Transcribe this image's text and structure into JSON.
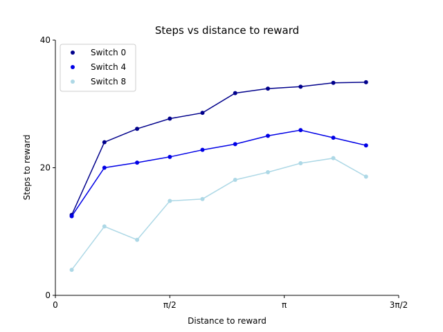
{
  "chart_data": {
    "type": "line",
    "title": "Steps vs distance to reward",
    "xlabel": "Distance to reward",
    "ylabel": "Steps to reward",
    "xlim": [
      0,
      4.712389
    ],
    "ylim": [
      0,
      40
    ],
    "xticks": [
      {
        "value": 0,
        "label": "0"
      },
      {
        "value": 1.570796,
        "label": "π/2"
      },
      {
        "value": 3.141593,
        "label": "π"
      },
      {
        "value": 4.712389,
        "label": "3π/2"
      }
    ],
    "yticks": [
      {
        "value": 0,
        "label": "0"
      },
      {
        "value": 20,
        "label": "20"
      },
      {
        "value": 40,
        "label": "40"
      }
    ],
    "x": [
      0.224,
      0.673,
      1.122,
      1.571,
      2.019,
      2.468,
      2.917,
      3.366,
      3.815,
      4.264
    ],
    "series": [
      {
        "name": "Switch 0",
        "color": "#00008b",
        "values": [
          12.6,
          24.0,
          26.1,
          27.7,
          28.6,
          31.7,
          32.4,
          32.7,
          33.3,
          33.4
        ]
      },
      {
        "name": "Switch 4",
        "color": "#0000e6",
        "values": [
          12.4,
          20.0,
          20.8,
          21.7,
          22.8,
          23.7,
          25.0,
          25.9,
          24.7,
          23.5
        ]
      },
      {
        "name": "Switch 8",
        "color": "#add8e6",
        "values": [
          4.0,
          10.8,
          8.7,
          14.8,
          15.1,
          18.1,
          19.3,
          20.7,
          21.5,
          18.6
        ]
      }
    ],
    "legend": {
      "position": "upper-left"
    },
    "grid": false
  }
}
